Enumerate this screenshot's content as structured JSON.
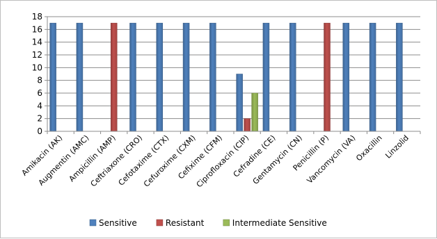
{
  "chart_data": {
    "type": "bar",
    "title": "",
    "xlabel": "",
    "ylabel": "",
    "ylim": [
      0,
      18
    ],
    "yticks": [
      0,
      2,
      4,
      6,
      8,
      10,
      12,
      14,
      16,
      18
    ],
    "grid": true,
    "legend_position": "bottom",
    "categories": [
      "Amikacin (AK)",
      "Augmentin (AMC)",
      "Ampicillin (AMP)",
      "Ceftriaxone (CRO)",
      "Cefotaxime (CTX)",
      "Cefuroxime (CXM)",
      "Cefixime (CFM)",
      "Ciprofloxacin (CIP)",
      "Cefradine (CE)",
      "Gentamycin (CN)",
      "Penicillin (P)",
      "Vancomycin (VA)",
      "Oxacillin",
      "Linzolid"
    ],
    "series": [
      {
        "name": "Sensitive",
        "color": "#4f81bd",
        "values": [
          17,
          17,
          0,
          17,
          17,
          17,
          17,
          9,
          17,
          17,
          0,
          17,
          17,
          17
        ]
      },
      {
        "name": "Resistant",
        "color": "#c0504d",
        "values": [
          0,
          0,
          17,
          0,
          0,
          0,
          0,
          2,
          0,
          0,
          17,
          0,
          0,
          0
        ]
      },
      {
        "name": "Intermediate Sensitive",
        "color": "#9bbb59",
        "values": [
          0,
          0,
          0,
          0,
          0,
          0,
          0,
          6,
          0,
          0,
          0,
          0,
          0,
          0
        ]
      }
    ]
  }
}
